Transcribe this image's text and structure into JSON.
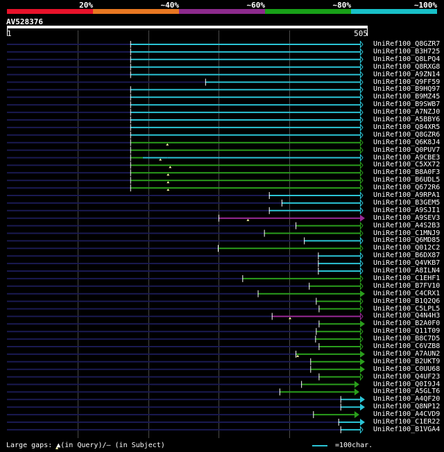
{
  "scale_labels": [
    "20%",
    "~40%",
    "~60%",
    "~80%",
    "~100%"
  ],
  "scale_colors": [
    "#e8122a",
    "#e87722",
    "#8c2a8c",
    "#18a018",
    "#18c0c8"
  ],
  "query": {
    "name": "AV528376",
    "start": "1",
    "end": "505",
    "length": 505
  },
  "colors": {
    "cyan": "#2bc4d6",
    "green": "#2a9e1c",
    "purple": "#9a2a98",
    "navy": "#1a1a52",
    "grid": "#4a4a4a"
  },
  "hits": [
    {
      "name": "UniRef100_Q8GZR7",
      "color": "cyan",
      "start": 177,
      "end": 505,
      "arrow": "line",
      "gaps": []
    },
    {
      "name": "UniRef100_B3H725",
      "color": "cyan",
      "start": 177,
      "end": 505,
      "arrow": "line",
      "gaps": []
    },
    {
      "name": "UniRef100_Q8LPQ4",
      "color": "cyan",
      "start": 177,
      "end": 505,
      "arrow": "line",
      "gaps": []
    },
    {
      "name": "UniRef100_Q8RXG8",
      "color": "cyan",
      "start": 177,
      "end": 505,
      "arrow": "line",
      "gaps": []
    },
    {
      "name": "UniRef100_A9ZN14",
      "color": "cyan",
      "start": 177,
      "end": 505,
      "arrow": "line",
      "gaps": []
    },
    {
      "name": "UniRef100_Q9FF59",
      "color": "cyan",
      "start": 284,
      "end": 505,
      "arrow": "line",
      "gaps": []
    },
    {
      "name": "UniRef100_B9HQ97",
      "color": "cyan",
      "start": 177,
      "end": 505,
      "arrow": "line",
      "gaps": []
    },
    {
      "name": "UniRef100_B9MZ45",
      "color": "cyan",
      "start": 177,
      "end": 505,
      "arrow": "line",
      "gaps": []
    },
    {
      "name": "UniRef100_B9SWB7",
      "color": "cyan",
      "start": 177,
      "end": 505,
      "arrow": "line",
      "gaps": []
    },
    {
      "name": "UniRef100_A7NZJ0",
      "color": "cyan",
      "start": 177,
      "end": 505,
      "arrow": "line",
      "gaps": []
    },
    {
      "name": "UniRef100_A5BBY6",
      "color": "cyan",
      "start": 177,
      "end": 505,
      "arrow": "line",
      "gaps": []
    },
    {
      "name": "UniRef100_Q84XR5",
      "color": "cyan",
      "start": 177,
      "end": 505,
      "arrow": "line",
      "gaps": []
    },
    {
      "name": "UniRef100_Q8GZR6",
      "color": "cyan",
      "start": 177,
      "end": 505,
      "arrow": "line",
      "gaps": []
    },
    {
      "name": "UniRef100_Q6K8J4",
      "color": "green",
      "start": 177,
      "end": 505,
      "arrow": "line",
      "gaps": [
        230
      ]
    },
    {
      "name": "UniRef100_Q0PUV7",
      "color": "green",
      "start": 177,
      "end": 505,
      "arrow": "line",
      "gaps": []
    },
    {
      "name": "UniRef100_A9CBE3",
      "color": "cyan",
      "start": 177,
      "end": 505,
      "arrow": "line",
      "gaps": [
        220
      ],
      "segments": [
        [
          177,
          195,
          "green"
        ],
        [
          195,
          230,
          "cyan"
        ],
        [
          230,
          505,
          "cyan"
        ]
      ]
    },
    {
      "name": "UniRef100_C5XX72",
      "color": "green",
      "start": 177,
      "end": 505,
      "arrow": "line",
      "gaps": [
        234
      ]
    },
    {
      "name": "UniRef100_B8A0F3",
      "color": "green",
      "start": 177,
      "end": 505,
      "arrow": "line",
      "gaps": [
        231
      ]
    },
    {
      "name": "UniRef100_B6UDL5",
      "color": "green",
      "start": 177,
      "end": 505,
      "arrow": "line",
      "gaps": [
        231
      ]
    },
    {
      "name": "UniRef100_Q672R6",
      "color": "green",
      "start": 177,
      "end": 505,
      "arrow": "line",
      "gaps": [
        231
      ]
    },
    {
      "name": "UniRef100_A9RPA1",
      "color": "cyan",
      "start": 375,
      "end": 505,
      "arrow": "line",
      "gaps": []
    },
    {
      "name": "UniRef100_B3GEM5",
      "color": "cyan",
      "start": 393,
      "end": 505,
      "arrow": "line",
      "gaps": []
    },
    {
      "name": "UniRef100_A9SJI1",
      "color": "cyan",
      "start": 375,
      "end": 505,
      "arrow": "line",
      "gaps": []
    },
    {
      "name": "UniRef100_A9SEV3",
      "color": "purple",
      "start": 303,
      "end": 505,
      "arrow": "tri",
      "gaps": [
        345
      ]
    },
    {
      "name": "UniRef100_A4S2B3",
      "color": "green",
      "start": 413,
      "end": 505,
      "arrow": "line",
      "gaps": []
    },
    {
      "name": "UniRef100_C1MNJ9",
      "color": "green",
      "start": 368,
      "end": 505,
      "arrow": "line",
      "gaps": []
    },
    {
      "name": "UniRef100_Q6MD85",
      "color": "cyan",
      "start": 425,
      "end": 505,
      "arrow": "line",
      "gaps": []
    },
    {
      "name": "UniRef100_Q012C2",
      "color": "green",
      "start": 302,
      "end": 505,
      "arrow": "line",
      "gaps": []
    },
    {
      "name": "UniRef100_B6DX87",
      "color": "cyan",
      "start": 445,
      "end": 505,
      "arrow": "line",
      "gaps": []
    },
    {
      "name": "UniRef100_Q4VKB7",
      "color": "cyan",
      "start": 445,
      "end": 505,
      "arrow": "line",
      "gaps": []
    },
    {
      "name": "UniRef100_A8ILN4",
      "color": "cyan",
      "start": 445,
      "end": 505,
      "arrow": "line",
      "gaps": []
    },
    {
      "name": "UniRef100_C1EHF1",
      "color": "green",
      "start": 337,
      "end": 505,
      "arrow": "line",
      "gaps": []
    },
    {
      "name": "UniRef100_B7FV10",
      "color": "green",
      "start": 432,
      "end": 505,
      "arrow": "line",
      "gaps": []
    },
    {
      "name": "UniRef100_C4CRX1",
      "color": "green",
      "start": 359,
      "end": 505,
      "arrow": "tri",
      "gaps": []
    },
    {
      "name": "UniRef100_B1Q2Q6",
      "color": "green",
      "start": 442,
      "end": 505,
      "arrow": "line",
      "gaps": []
    },
    {
      "name": "UniRef100_C5LPL5",
      "color": "green",
      "start": 446,
      "end": 505,
      "arrow": "line",
      "gaps": []
    },
    {
      "name": "UniRef100_Q4N4H3",
      "color": "purple",
      "start": 379,
      "end": 505,
      "arrow": "line",
      "gaps": [
        405
      ]
    },
    {
      "name": "UniRef100_B2A0F0",
      "color": "green",
      "start": 446,
      "end": 505,
      "arrow": "tri",
      "gaps": []
    },
    {
      "name": "UniRef100_Q11T09",
      "color": "green",
      "start": 442,
      "end": 505,
      "arrow": "line",
      "gaps": []
    },
    {
      "name": "UniRef100_B8C7D5",
      "color": "green",
      "start": 441,
      "end": 505,
      "arrow": "line",
      "gaps": []
    },
    {
      "name": "UniRef100_C6VZB8",
      "color": "green",
      "start": 446,
      "end": 505,
      "arrow": "line",
      "gaps": []
    },
    {
      "name": "UniRef100_A7AUN2",
      "color": "green",
      "start": 413,
      "end": 505,
      "arrow": "tri",
      "gaps": [
        416
      ]
    },
    {
      "name": "UniRef100_B2UKT9",
      "color": "green",
      "start": 434,
      "end": 505,
      "arrow": "tri",
      "gaps": []
    },
    {
      "name": "UniRef100_C0UU68",
      "color": "green",
      "start": 434,
      "end": 505,
      "arrow": "tri",
      "gaps": []
    },
    {
      "name": "UniRef100_Q4UF23",
      "color": "green",
      "start": 446,
      "end": 505,
      "arrow": "line",
      "gaps": []
    },
    {
      "name": "UniRef100_Q0I9J4",
      "color": "green",
      "start": 421,
      "end": 497,
      "arrow": "tri",
      "gaps": []
    },
    {
      "name": "UniRef100_A5GLT6",
      "color": "green",
      "start": 390,
      "end": 497,
      "arrow": "tri",
      "gaps": []
    },
    {
      "name": "UniRef100_A4QF20",
      "color": "cyan",
      "start": 477,
      "end": 505,
      "arrow": "tri",
      "gaps": []
    },
    {
      "name": "UniRef100_Q8NP12",
      "color": "cyan",
      "start": 477,
      "end": 505,
      "arrow": "tri",
      "gaps": []
    },
    {
      "name": "UniRef100_A4CVD9",
      "color": "green",
      "start": 438,
      "end": 497,
      "arrow": "tri",
      "gaps": []
    },
    {
      "name": "UniRef100_C1ER22",
      "color": "cyan",
      "start": 474,
      "end": 505,
      "arrow": "tri",
      "gaps": []
    },
    {
      "name": "UniRef100_B1VGA4",
      "color": "cyan",
      "start": 477,
      "end": 505,
      "arrow": "line",
      "gaps": []
    }
  ],
  "legend": {
    "text": "Large gaps: ▲(in Query)/— (in Subject)",
    "scale": "=100char."
  }
}
